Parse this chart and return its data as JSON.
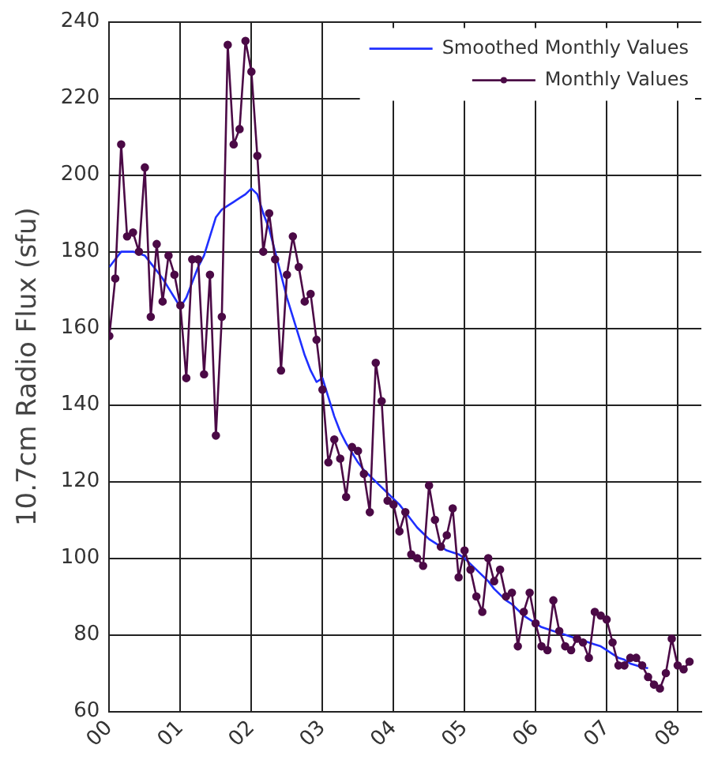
{
  "chart_data": {
    "type": "line",
    "ylabel": "10.7cm Radio Flux (sfu)",
    "x": [
      "2000-01",
      "2000-02",
      "2000-03",
      "2000-04",
      "2000-05",
      "2000-06",
      "2000-07",
      "2000-08",
      "2000-09",
      "2000-10",
      "2000-11",
      "2000-12",
      "2001-01",
      "2001-02",
      "2001-03",
      "2001-04",
      "2001-05",
      "2001-06",
      "2001-07",
      "2001-08",
      "2001-09",
      "2001-10",
      "2001-11",
      "2001-12",
      "2002-01",
      "2002-02",
      "2002-03",
      "2002-04",
      "2002-05",
      "2002-06",
      "2002-07",
      "2002-08",
      "2002-09",
      "2002-10",
      "2002-11",
      "2002-12",
      "2003-01",
      "2003-02",
      "2003-03",
      "2003-04",
      "2003-05",
      "2003-06",
      "2003-07",
      "2003-08",
      "2003-09",
      "2003-10",
      "2003-11",
      "2003-12",
      "2004-01",
      "2004-02",
      "2004-03",
      "2004-04",
      "2004-05",
      "2004-06",
      "2004-07",
      "2004-08",
      "2004-09",
      "2004-10",
      "2004-11",
      "2004-12",
      "2005-01",
      "2005-02",
      "2005-03",
      "2005-04",
      "2005-05",
      "2005-06",
      "2005-07",
      "2005-08",
      "2005-09",
      "2005-10",
      "2005-11",
      "2005-12",
      "2006-01",
      "2006-02",
      "2006-03",
      "2006-04",
      "2006-05",
      "2006-06",
      "2006-07",
      "2006-08",
      "2006-09",
      "2006-10",
      "2006-11",
      "2006-12",
      "2007-01",
      "2007-02",
      "2007-03",
      "2007-04",
      "2007-05",
      "2007-06",
      "2007-07",
      "2007-08",
      "2007-09",
      "2007-10",
      "2007-11",
      "2007-12",
      "2008-01",
      "2008-02",
      "2008-03"
    ],
    "series": [
      {
        "name": "Smoothed Monthly Values",
        "color": "#1f2fff",
        "marker": "none",
        "values": [
          176,
          178,
          180,
          180,
          180,
          179.5,
          179,
          177,
          175,
          173,
          170.5,
          168,
          165.5,
          168,
          172,
          176,
          179,
          184,
          189,
          191,
          192,
          193,
          194,
          195,
          196.5,
          195,
          190,
          186,
          180,
          174,
          168,
          163,
          158,
          153,
          149,
          146,
          147,
          142,
          137,
          133,
          130,
          127.5,
          125,
          123,
          121.5,
          120,
          118.5,
          117,
          115.5,
          114,
          112,
          110,
          108,
          106.5,
          105,
          104,
          103,
          102,
          101.5,
          101,
          100,
          98.5,
          97,
          95.5,
          94,
          92,
          90.5,
          89,
          88,
          86.5,
          85,
          84,
          83,
          82,
          81.5,
          81,
          80.5,
          80,
          79.5,
          79,
          78.5,
          78,
          77.5,
          77,
          76,
          75,
          74,
          73.5,
          72.5,
          72,
          71.5,
          71.3,
          null,
          null,
          null,
          null,
          null,
          null,
          null
        ]
      },
      {
        "name": "Monthly Values",
        "color": "#4b0a46",
        "marker": "circle",
        "values": [
          158,
          173,
          208,
          184,
          185,
          180,
          202,
          163,
          182,
          167,
          179,
          174,
          166,
          147,
          178,
          178,
          148,
          174,
          132,
          163,
          234,
          208,
          212,
          235,
          227,
          205,
          180,
          190,
          178,
          149,
          174,
          184,
          176,
          167,
          169,
          157,
          144,
          125,
          131,
          126,
          116,
          129,
          128,
          122,
          112,
          151,
          141,
          115,
          114,
          107,
          112,
          101,
          100,
          98,
          119,
          110,
          103,
          106,
          113,
          95,
          102,
          97,
          90,
          86,
          100,
          94,
          97,
          90,
          91,
          77,
          86,
          91,
          83,
          77,
          76,
          89,
          81,
          77,
          76,
          79,
          78,
          74,
          86,
          85,
          84,
          78,
          72,
          72,
          74,
          74,
          72,
          69,
          67,
          66,
          70,
          79,
          72,
          71,
          73
        ]
      }
    ],
    "xlim": [
      "2000-01",
      "2008-05"
    ],
    "xticks": [
      {
        "value": "2000-01",
        "label": "00"
      },
      {
        "value": "2001-01",
        "label": "01"
      },
      {
        "value": "2002-01",
        "label": "02"
      },
      {
        "value": "2003-01",
        "label": "03"
      },
      {
        "value": "2004-01",
        "label": "04"
      },
      {
        "value": "2005-01",
        "label": "05"
      },
      {
        "value": "2006-01",
        "label": "06"
      },
      {
        "value": "2007-01",
        "label": "07"
      },
      {
        "value": "2008-01",
        "label": "08"
      }
    ],
    "ylim": [
      60,
      240
    ],
    "yticks": [
      60,
      80,
      100,
      120,
      140,
      160,
      180,
      200,
      220,
      240
    ],
    "grid": true,
    "legend": "top right"
  }
}
